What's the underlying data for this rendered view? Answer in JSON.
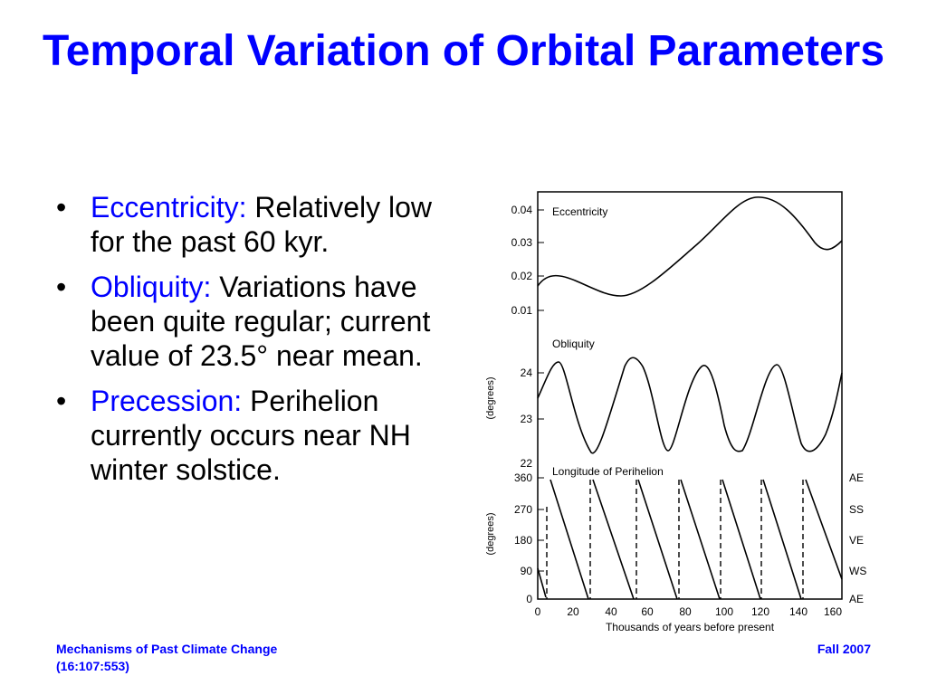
{
  "slide": {
    "title": "Temporal Variation of Orbital Parameters",
    "bullets": [
      {
        "term": "Eccentricity:",
        "text": " Relatively low for the past 60 kyr."
      },
      {
        "term": "Obliquity:",
        "text": " Variations have been quite regular; current value of 23.5° near mean."
      },
      {
        "term": "Precession:",
        "text": " Perihelion currently occurs near NH winter solstice."
      }
    ],
    "bullet_symbol": "•"
  },
  "footer": {
    "left_line1": "Mechanisms of Past Climate Change",
    "left_line2": "(16:107:553)",
    "right": "Fall 2007"
  },
  "figure": {
    "xlabel": "Thousands of years before present",
    "x_ticks": [
      "0",
      "20",
      "40",
      "60",
      "80",
      "100",
      "120",
      "140",
      "160"
    ],
    "panels": {
      "eccentricity": {
        "label": "Eccentricity",
        "y_ticks": [
          "0.04",
          "0.03",
          "0.02",
          "0.01"
        ]
      },
      "obliquity": {
        "label": "Obliquity",
        "ylabel": "(degrees)",
        "y_ticks": [
          "24",
          "23",
          "22"
        ]
      },
      "perihelion": {
        "label": "Longitude of Perihelion",
        "ylabel": "(degrees)",
        "y_ticks": [
          "360",
          "270",
          "180",
          "90",
          "0"
        ],
        "right_labels": [
          "AE",
          "SS",
          "VE",
          "WS",
          "AE"
        ]
      }
    }
  }
}
